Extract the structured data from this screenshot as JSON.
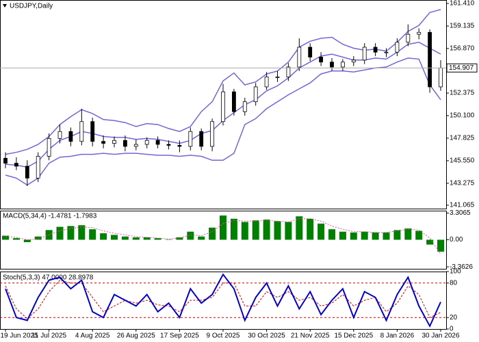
{
  "chart_data": [
    {
      "type": "candlestick",
      "title": "USDJPY,Daily",
      "categories": [
        "19 Jun 2025",
        null,
        null,
        null,
        "11 Jul 2025",
        null,
        null,
        null,
        "4 Aug 2025",
        null,
        null,
        null,
        "26 Aug 2025",
        null,
        null,
        null,
        "17 Sep 2025",
        null,
        null,
        null,
        "9 Oct 2025",
        null,
        null,
        null,
        "30 Oct 2025",
        null,
        null,
        null,
        "21 Nov 2025",
        null,
        null,
        null,
        "15 Dec 2025",
        null,
        null,
        null,
        "8 Jan 2026",
        null,
        null,
        null,
        "30 Jan 2026"
      ],
      "open": [
        145.8,
        145.3,
        145.0,
        143.8,
        146.0,
        147.8,
        148.5,
        147.5,
        149.5,
        147.5,
        147.3,
        147.6,
        147.0,
        147.2,
        147.6,
        147.2,
        147.1,
        147.0,
        148.5,
        147.0,
        149.5,
        152.5,
        150.5,
        151.5,
        153.0,
        154.0,
        154.0,
        155.0,
        157.0,
        156.0,
        155.5,
        155.0,
        155.5,
        155.7,
        157.0,
        156.5,
        156.5,
        157.5,
        158.3,
        158.5,
        153.0
      ],
      "high": [
        146.4,
        145.9,
        145.6,
        146.4,
        148.3,
        149.2,
        148.9,
        150.8,
        149.9,
        148.1,
        148.0,
        148.1,
        147.7,
        147.9,
        148.0,
        147.6,
        147.6,
        148.9,
        148.8,
        149.8,
        153.3,
        152.8,
        151.9,
        153.4,
        154.5,
        154.6,
        155.4,
        157.9,
        157.4,
        156.5,
        155.9,
        155.8,
        156.1,
        157.4,
        157.4,
        156.9,
        157.9,
        159.3,
        158.9,
        158.8,
        155.7
      ],
      "low": [
        144.8,
        144.6,
        143.0,
        143.4,
        145.6,
        147.3,
        147.0,
        147.1,
        147.0,
        146.8,
        146.9,
        146.5,
        146.6,
        146.8,
        146.8,
        146.7,
        146.4,
        146.6,
        146.6,
        146.5,
        149.1,
        150.1,
        150.1,
        151.1,
        152.7,
        153.5,
        153.6,
        154.6,
        155.6,
        155.1,
        154.6,
        154.6,
        155.1,
        155.3,
        156.1,
        156.0,
        156.1,
        157.1,
        157.8,
        152.4,
        152.6
      ],
      "close": [
        145.3,
        145.0,
        143.8,
        146.0,
        147.8,
        148.5,
        147.5,
        149.5,
        147.5,
        147.3,
        147.6,
        147.0,
        147.2,
        147.6,
        147.2,
        147.1,
        147.0,
        148.5,
        147.0,
        149.5,
        152.5,
        150.5,
        151.5,
        153.0,
        154.0,
        154.0,
        155.0,
        157.0,
        156.0,
        155.5,
        155.0,
        155.5,
        155.7,
        157.0,
        156.5,
        156.5,
        157.5,
        158.3,
        158.5,
        153.0,
        154.907
      ],
      "overlays": [
        {
          "color": "#6f66d8",
          "values": [
            146.2,
            146.4,
            146.7,
            147.2,
            148.0,
            149.2,
            150.0,
            150.7,
            150.3,
            149.7,
            149.6,
            149.4,
            149.0,
            149.3,
            149.2,
            148.8,
            148.5,
            149.0,
            150.5,
            151.5,
            153.6,
            154.4,
            153.2,
            153.5,
            154.3,
            154.6,
            155.5,
            157.0,
            157.6,
            157.9,
            158.0,
            157.3,
            156.9,
            156.7,
            156.8,
            156.6,
            157.5,
            158.6,
            159.2,
            160.5,
            160.8
          ]
        },
        {
          "color": "#6f66d8",
          "values": [
            145.2,
            145.1,
            144.9,
            145.5,
            146.7,
            147.6,
            148.0,
            148.5,
            148.3,
            148.0,
            147.9,
            147.9,
            147.7,
            147.8,
            147.7,
            147.5,
            147.3,
            147.6,
            148.3,
            148.6,
            149.6,
            150.4,
            151.2,
            151.7,
            152.6,
            153.1,
            153.9,
            154.9,
            155.5,
            156.1,
            156.3,
            156.0,
            155.7,
            155.7,
            155.9,
            155.8,
            156.5,
            157.3,
            157.5,
            156.9,
            156.3
          ]
        },
        {
          "color": "#6f66d8",
          "values": [
            144.1,
            143.8,
            143.1,
            143.8,
            145.3,
            145.9,
            146.0,
            146.2,
            146.2,
            146.3,
            146.2,
            146.3,
            146.3,
            146.2,
            146.1,
            146.1,
            146.0,
            146.1,
            146.0,
            145.6,
            145.6,
            146.3,
            149.2,
            149.8,
            150.8,
            151.5,
            152.2,
            152.8,
            153.4,
            154.3,
            154.6,
            154.6,
            154.5,
            154.7,
            154.9,
            155.0,
            155.5,
            155.9,
            155.8,
            153.2,
            151.7
          ]
        }
      ],
      "last_price": 154.907,
      "ylim": [
        140.72,
        161.76
      ],
      "yticks": [
        {
          "value": 161.41,
          "label": "161.410"
        },
        159.135,
        {
          "value": 156.87,
          "label": "156.870"
        },
        152.375,
        {
          "value": 150.1,
          "label": "150.100"
        },
        147.825,
        {
          "value": 145.55,
          "label": "145.550"
        },
        143.275,
        141.065
      ]
    },
    {
      "type": "macd",
      "title": "MACD(5,34,4) -1.4781 -1.7983",
      "color": "#008000",
      "signal_color": "#e0508f",
      "values": [
        0.5,
        0.2,
        -0.3,
        0.4,
        1.2,
        1.6,
        1.7,
        1.8,
        1.3,
        0.8,
        0.6,
        0.4,
        0.3,
        0.3,
        0.2,
        0.0,
        0.3,
        1.0,
        0.4,
        1.5,
        3.0,
        2.6,
        2.2,
        2.4,
        2.5,
        2.3,
        2.2,
        2.9,
        2.6,
        2.0,
        1.3,
        1.0,
        0.9,
        1.0,
        0.9,
        0.9,
        1.2,
        1.4,
        1.1,
        -0.6,
        -1.4781
      ],
      "signal": [
        0.4,
        0.3,
        0.0,
        0.1,
        0.6,
        1.1,
        1.4,
        1.6,
        1.5,
        1.1,
        0.8,
        0.6,
        0.4,
        0.3,
        0.2,
        0.1,
        0.2,
        0.6,
        0.5,
        1.0,
        2.0,
        2.4,
        2.3,
        2.3,
        2.4,
        2.3,
        2.2,
        2.6,
        2.6,
        2.3,
        1.7,
        1.3,
        1.0,
        1.0,
        0.9,
        0.9,
        1.1,
        1.3,
        1.2,
        0.2,
        -1.7983
      ],
      "ylim": [
        -3.6,
        3.6
      ],
      "yticks": [
        3.3065,
        {
          "value": 0,
          "label": "0.00"
        },
        -3.3626
      ]
    },
    {
      "type": "stochastic",
      "title": "Stoch(5,3,3) 47.0000 28.8978",
      "color": "#0000c8",
      "signal_color": "#d00000",
      "values": [
        70,
        20,
        15,
        55,
        85,
        90,
        70,
        85,
        30,
        20,
        60,
        50,
        40,
        60,
        30,
        45,
        20,
        70,
        45,
        60,
        95,
        70,
        15,
        55,
        80,
        40,
        75,
        35,
        65,
        25,
        50,
        70,
        20,
        65,
        55,
        15,
        60,
        90,
        40,
        5,
        47.0
      ],
      "signal": [
        75,
        35,
        18,
        35,
        65,
        85,
        80,
        80,
        55,
        30,
        40,
        50,
        45,
        50,
        42,
        40,
        30,
        50,
        50,
        55,
        80,
        80,
        40,
        40,
        65,
        55,
        65,
        50,
        55,
        40,
        45,
        60,
        40,
        50,
        55,
        30,
        45,
        75,
        60,
        20,
        28.8978
      ],
      "levels": [
        20,
        80
      ],
      "ylim": [
        0,
        100
      ],
      "yticks": [
        100,
        80,
        20,
        0
      ]
    }
  ]
}
